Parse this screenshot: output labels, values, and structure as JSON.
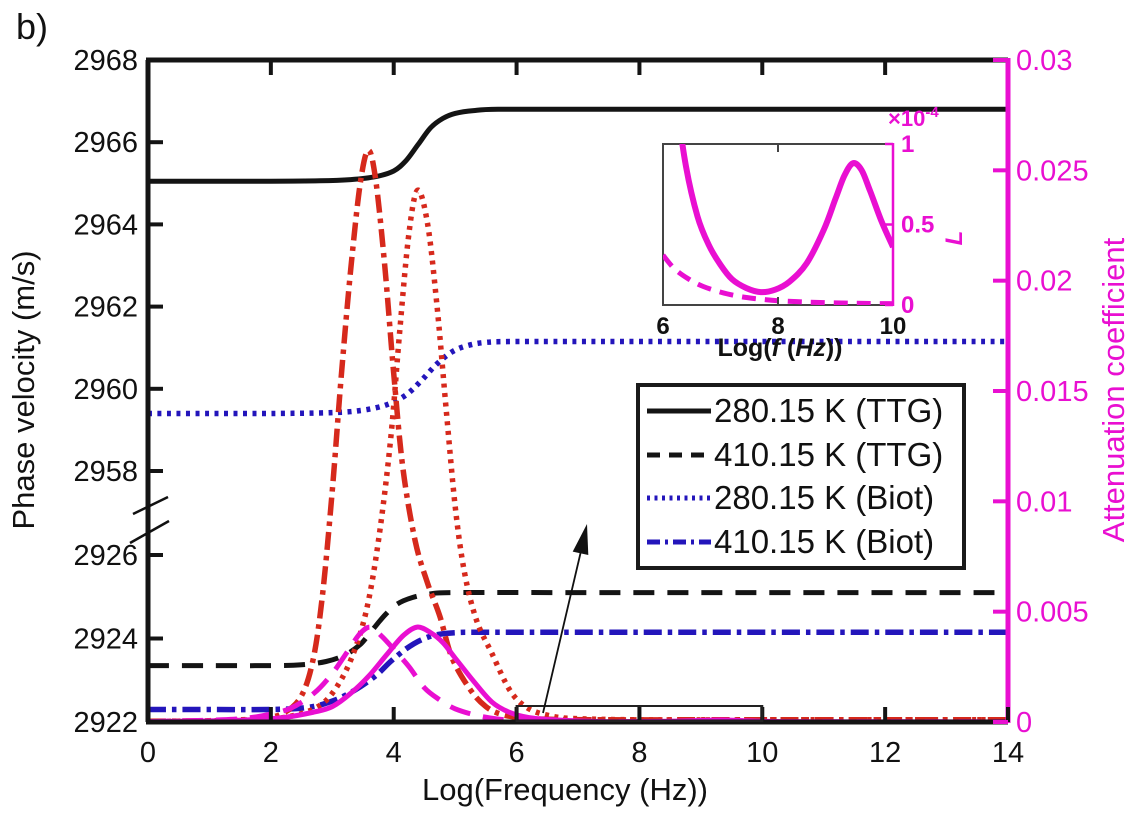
{
  "figure_label": "b)",
  "palette": {
    "black": "#141414",
    "red": "#d6291c",
    "blue": "#2315bb",
    "magenta": "#e90fd1"
  },
  "chart_data": {
    "type": "line",
    "title": "",
    "xlabel": "Log(Frequency (Hz))",
    "ylabel_left": "Phase velocity (m/s)",
    "ylabel_right": "Attenuation coefficient",
    "x_range": [
      0,
      14
    ],
    "x_ticks": [
      0,
      2,
      4,
      6,
      8,
      10,
      12,
      14
    ],
    "y_left": {
      "axis_break": true,
      "upper_range": [
        2957.2,
        2968
      ],
      "lower_range": [
        2922,
        2926.4
      ],
      "upper_ticks": [
        2968,
        2966,
        2964,
        2962,
        2960,
        2958
      ],
      "lower_ticks": [
        2926,
        2924,
        2922
      ]
    },
    "y_right": {
      "range": [
        0,
        0.03
      ],
      "ticks": [
        0.03,
        0.025,
        0.02,
        0.015,
        0.01,
        0.005,
        0
      ],
      "tick_labels": [
        "0.03",
        "0.025",
        "0.02",
        "0.015",
        "0.01",
        "0.005",
        "0"
      ]
    },
    "series": [
      {
        "name": "280.15 K (TTG) phase velocity",
        "axis": "left",
        "color": "black",
        "style": "solid",
        "points": [
          [
            0,
            2965.05
          ],
          [
            1,
            2965.05
          ],
          [
            2,
            2965.05
          ],
          [
            2.8,
            2965.06
          ],
          [
            3.3,
            2965.09
          ],
          [
            3.7,
            2965.16
          ],
          [
            4.0,
            2965.3
          ],
          [
            4.2,
            2965.55
          ],
          [
            4.4,
            2965.95
          ],
          [
            4.6,
            2966.35
          ],
          [
            4.8,
            2966.58
          ],
          [
            5.0,
            2966.7
          ],
          [
            5.3,
            2966.77
          ],
          [
            5.7,
            2966.8
          ],
          [
            7,
            2966.8
          ],
          [
            10,
            2966.8
          ],
          [
            14,
            2966.8
          ]
        ]
      },
      {
        "name": "410.15 K (TTG) phase velocity",
        "axis": "left",
        "color": "black",
        "style": "dashed",
        "points": [
          [
            0,
            2923.35
          ],
          [
            1,
            2923.35
          ],
          [
            2,
            2923.35
          ],
          [
            2.5,
            2923.37
          ],
          [
            2.9,
            2923.45
          ],
          [
            3.2,
            2923.6
          ],
          [
            3.45,
            2923.85
          ],
          [
            3.65,
            2924.2
          ],
          [
            3.85,
            2924.55
          ],
          [
            4.05,
            2924.82
          ],
          [
            4.3,
            2924.98
          ],
          [
            4.6,
            2925.07
          ],
          [
            5.0,
            2925.1
          ],
          [
            7,
            2925.1
          ],
          [
            10,
            2925.1
          ],
          [
            14,
            2925.1
          ]
        ]
      },
      {
        "name": "280.15 K (Biot) phase velocity",
        "axis": "left",
        "color": "blue",
        "style": "dotted",
        "points": [
          [
            0,
            2959.4
          ],
          [
            1,
            2959.4
          ],
          [
            2,
            2959.4
          ],
          [
            3,
            2959.42
          ],
          [
            3.5,
            2959.48
          ],
          [
            3.9,
            2959.62
          ],
          [
            4.2,
            2959.85
          ],
          [
            4.45,
            2960.2
          ],
          [
            4.7,
            2960.6
          ],
          [
            4.95,
            2960.9
          ],
          [
            5.2,
            2961.05
          ],
          [
            5.5,
            2961.13
          ],
          [
            6,
            2961.15
          ],
          [
            8,
            2961.15
          ],
          [
            11,
            2961.15
          ],
          [
            14,
            2961.15
          ]
        ]
      },
      {
        "name": "410.15 K (Biot) phase velocity",
        "axis": "left",
        "color": "blue",
        "style": "dashdot",
        "points": [
          [
            0,
            2922.3
          ],
          [
            1,
            2922.3
          ],
          [
            2,
            2922.3
          ],
          [
            2.6,
            2922.35
          ],
          [
            3.0,
            2922.5
          ],
          [
            3.35,
            2922.75
          ],
          [
            3.7,
            2923.1
          ],
          [
            3.95,
            2923.45
          ],
          [
            4.2,
            2923.75
          ],
          [
            4.45,
            2923.97
          ],
          [
            4.7,
            2924.09
          ],
          [
            5.0,
            2924.14
          ],
          [
            5.5,
            2924.15
          ],
          [
            8,
            2924.15
          ],
          [
            11,
            2924.15
          ],
          [
            14,
            2924.15
          ]
        ]
      },
      {
        "name": "410.15 K (TTG) attenuation",
        "axis": "right",
        "color": "red",
        "style": "dashdot",
        "points": [
          [
            0,
            3e-05
          ],
          [
            1,
            6e-05
          ],
          [
            1.8,
            0.00015
          ],
          [
            2.2,
            0.0004
          ],
          [
            2.5,
            0.0012
          ],
          [
            2.7,
            0.003
          ],
          [
            2.85,
            0.006
          ],
          [
            3.0,
            0.0105
          ],
          [
            3.15,
            0.0158
          ],
          [
            3.3,
            0.0205
          ],
          [
            3.45,
            0.0243
          ],
          [
            3.58,
            0.0259
          ],
          [
            3.7,
            0.0247
          ],
          [
            3.85,
            0.0208
          ],
          [
            4.0,
            0.0158
          ],
          [
            4.15,
            0.0115
          ],
          [
            4.35,
            0.0082
          ],
          [
            4.55,
            0.0063
          ],
          [
            4.75,
            0.0048
          ],
          [
            4.95,
            0.0029
          ],
          [
            5.25,
            0.00145
          ],
          [
            5.5,
            0.0007
          ],
          [
            5.75,
            0.00035
          ],
          [
            6.1,
            0.00018
          ],
          [
            6.6,
            0.00012
          ],
          [
            7.5,
            0.0001
          ],
          [
            9,
            0.0001
          ],
          [
            11,
            0.0001
          ],
          [
            14,
            0.0001
          ]
        ]
      },
      {
        "name": "280.15 K (TTG) attenuation",
        "axis": "right",
        "color": "red",
        "style": "dotted",
        "points": [
          [
            0,
            2e-05
          ],
          [
            1.5,
            8e-05
          ],
          [
            2.2,
            0.0002
          ],
          [
            2.7,
            0.0006
          ],
          [
            3.0,
            0.0013
          ],
          [
            3.3,
            0.0028
          ],
          [
            3.55,
            0.005
          ],
          [
            3.75,
            0.0082
          ],
          [
            3.95,
            0.0128
          ],
          [
            4.1,
            0.0178
          ],
          [
            4.25,
            0.0222
          ],
          [
            4.39,
            0.0241
          ],
          [
            4.55,
            0.0226
          ],
          [
            4.7,
            0.019
          ],
          [
            4.85,
            0.0143
          ],
          [
            5.0,
            0.0098
          ],
          [
            5.15,
            0.0068
          ],
          [
            5.35,
            0.0046
          ],
          [
            5.6,
            0.0031
          ],
          [
            5.9,
            0.0014
          ],
          [
            6.2,
            0.0006
          ],
          [
            6.6,
            0.00025
          ],
          [
            7.0,
            0.00015
          ],
          [
            8,
            0.0001
          ],
          [
            10,
            0.0001
          ],
          [
            12,
            0.0001
          ],
          [
            14,
            0.0001
          ]
        ]
      },
      {
        "name": "280.15 K (Biot) attenuation",
        "axis": "right",
        "color": "magenta",
        "style": "solid",
        "points": [
          [
            0,
            2e-05
          ],
          [
            1.5,
            8e-05
          ],
          [
            2.2,
            0.0002
          ],
          [
            2.7,
            0.00045
          ],
          [
            3.0,
            0.0007
          ],
          [
            3.3,
            0.0013
          ],
          [
            3.6,
            0.0021
          ],
          [
            3.9,
            0.0031
          ],
          [
            4.15,
            0.0039
          ],
          [
            4.38,
            0.0043
          ],
          [
            4.6,
            0.00405
          ],
          [
            4.8,
            0.0036
          ],
          [
            5.0,
            0.0029
          ],
          [
            5.3,
            0.00185
          ],
          [
            5.6,
            0.0009
          ],
          [
            5.9,
            0.00042
          ],
          [
            6.2,
            0.0002
          ],
          [
            6.6,
            0.0001
          ],
          [
            7.2,
            3e-05
          ],
          [
            7.7,
            1e-05
          ],
          [
            8.6,
            4e-05
          ],
          [
            9.3,
            9e-05
          ],
          [
            9.7,
            6e-05
          ],
          [
            10,
            3.5e-05
          ],
          [
            10.6,
            1e-05
          ],
          [
            12,
            5e-06
          ],
          [
            14,
            3e-06
          ]
        ]
      },
      {
        "name": "410.15 K (Biot) attenuation",
        "axis": "right",
        "color": "magenta",
        "style": "dashed",
        "points": [
          [
            0,
            2e-05
          ],
          [
            1.2,
            0.0001
          ],
          [
            1.8,
            0.00025
          ],
          [
            2.3,
            0.0006
          ],
          [
            2.7,
            0.0013
          ],
          [
            3.0,
            0.0022
          ],
          [
            3.25,
            0.0032
          ],
          [
            3.45,
            0.004
          ],
          [
            3.62,
            0.0043
          ],
          [
            3.8,
            0.0039
          ],
          [
            4.0,
            0.0033
          ],
          [
            4.25,
            0.0025
          ],
          [
            4.5,
            0.00155
          ],
          [
            4.75,
            0.001
          ],
          [
            5.0,
            0.0006
          ],
          [
            5.35,
            0.0003
          ],
          [
            5.7,
            0.00013
          ],
          [
            6.1,
            6e-05
          ],
          [
            6.6,
            3e-05
          ],
          [
            7.5,
            2e-05
          ],
          [
            9,
            1e-05
          ],
          [
            11,
            1e-05
          ],
          [
            14,
            1e-05
          ]
        ]
      }
    ]
  },
  "legend": {
    "items": [
      {
        "label": "280.15 K (TTG)",
        "color": "black",
        "style": "solid"
      },
      {
        "label": "410.15 K (TTG)",
        "color": "black",
        "style": "dashed"
      },
      {
        "label": "280.15 K (Biot)",
        "color": "blue",
        "style": "dotted"
      },
      {
        "label": "410.15 K (Biot)",
        "color": "blue",
        "style": "dashdot"
      }
    ]
  },
  "inset": {
    "xlabel_parts": [
      [
        "Log(",
        false
      ],
      [
        "f",
        true
      ],
      [
        " (",
        false
      ],
      [
        "Hz",
        true
      ],
      [
        "))",
        false
      ]
    ],
    "ylabel": "L",
    "exponent": {
      "base": "×10",
      "sup": "-4"
    },
    "x_range": [
      6,
      10
    ],
    "x_ticks": [
      6,
      8,
      10
    ],
    "y_ticks": [
      0,
      0.5,
      1
    ],
    "y_tick_labels": [
      "0",
      "0.5",
      "1"
    ],
    "y_scale": "1e-4",
    "series": [
      {
        "name": "280.15 K (Biot) attenuation (inset, ×10⁻⁴)",
        "color": "magenta",
        "style": "solid",
        "points": [
          [
            6.0,
            2.8
          ],
          [
            6.12,
            1.8
          ],
          [
            6.25,
            1.25
          ],
          [
            6.4,
            0.86
          ],
          [
            6.6,
            0.55
          ],
          [
            6.8,
            0.37
          ],
          [
            7.0,
            0.25
          ],
          [
            7.2,
            0.16
          ],
          [
            7.45,
            0.105
          ],
          [
            7.7,
            0.08
          ],
          [
            7.95,
            0.095
          ],
          [
            8.2,
            0.145
          ],
          [
            8.5,
            0.26
          ],
          [
            8.8,
            0.47
          ],
          [
            9.0,
            0.66
          ],
          [
            9.15,
            0.8
          ],
          [
            9.3,
            0.88
          ],
          [
            9.45,
            0.84
          ],
          [
            9.6,
            0.71
          ],
          [
            9.8,
            0.52
          ],
          [
            10,
            0.36
          ]
        ]
      },
      {
        "name": "410.15 K (Biot) attenuation (inset, ×10⁻⁴)",
        "color": "magenta",
        "style": "dashed",
        "points": [
          [
            6,
            0.31
          ],
          [
            6.2,
            0.225
          ],
          [
            6.45,
            0.16
          ],
          [
            6.7,
            0.115
          ],
          [
            7.0,
            0.08
          ],
          [
            7.3,
            0.055
          ],
          [
            7.6,
            0.04
          ],
          [
            8.0,
            0.027
          ],
          [
            8.5,
            0.018
          ],
          [
            9.0,
            0.013
          ],
          [
            9.5,
            0.01
          ],
          [
            10,
            0.008
          ]
        ]
      }
    ]
  },
  "annotations": {
    "zoom_region_x": [
      6,
      10
    ],
    "arrow_to_inset": true
  }
}
